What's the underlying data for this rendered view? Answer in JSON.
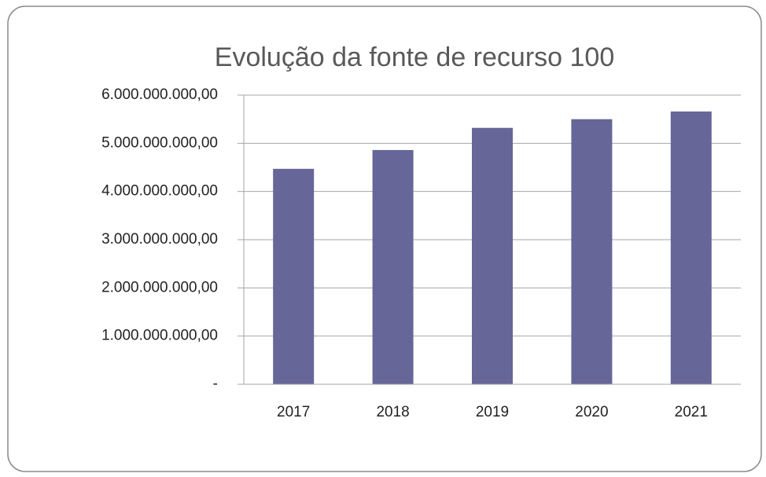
{
  "chart_data": {
    "type": "bar",
    "title": "Evolução da fonte de recurso 100",
    "categories": [
      "2017",
      "2018",
      "2019",
      "2020",
      "2021"
    ],
    "values": [
      4470000000,
      4860000000,
      5320000000,
      5500000000,
      5660000000
    ],
    "color": "#666699",
    "ylim": [
      0,
      6000000000
    ],
    "yticks": [
      {
        "value": 0,
        "label": "-"
      },
      {
        "value": 1000000000,
        "label": "1.000.000.000,00"
      },
      {
        "value": 2000000000,
        "label": "2.000.000.000,00"
      },
      {
        "value": 3000000000,
        "label": "3.000.000.000,00"
      },
      {
        "value": 4000000000,
        "label": "4.000.000.000,00"
      },
      {
        "value": 5000000000,
        "label": "5.000.000.000,00"
      },
      {
        "value": 6000000000,
        "label": "6.000.000.000,00"
      }
    ],
    "grid": true
  }
}
